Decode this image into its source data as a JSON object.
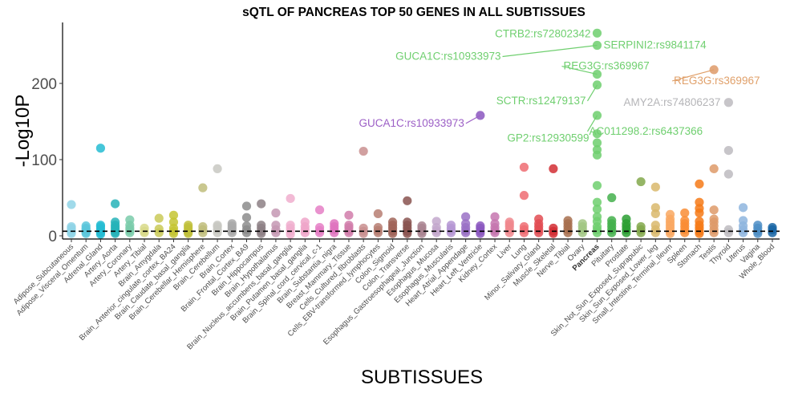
{
  "chart_data": {
    "type": "scatter",
    "title": "sQTL OF PANCREAS TOP 50 GENES IN ALL SUBTISSUES",
    "xlabel": "SUBTISSUES",
    "ylabel": "-Log10P",
    "ylim": [
      0,
      280
    ],
    "yticks": [
      0,
      100,
      200
    ],
    "grid": false,
    "threshold": 6,
    "highlight_category": "Pancreas",
    "categories": [
      {
        "name": "Adipose_Subcutaneous",
        "color": "#8FD3E6",
        "values": [
          3,
          5,
          8,
          10,
          12,
          41
        ]
      },
      {
        "name": "Adipose_Visceral_Omentum",
        "color": "#5BC6DB",
        "values": [
          3,
          5,
          8,
          10,
          13
        ]
      },
      {
        "name": "Adrenal_Gland",
        "color": "#25BCD2",
        "values": [
          2,
          4,
          6,
          9,
          12,
          14,
          115
        ]
      },
      {
        "name": "Artery_Aorta",
        "color": "#26B3B8",
        "values": [
          3,
          5,
          8,
          11,
          14,
          18,
          42
        ]
      },
      {
        "name": "Artery_Coronary",
        "color": "#7ACBAA",
        "values": [
          4,
          7,
          10,
          14,
          21
        ]
      },
      {
        "name": "Artery_Tibial",
        "color": "#D8D98A",
        "values": [
          4,
          6,
          10
        ]
      },
      {
        "name": "Brain_Amygdala",
        "color": "#CACA58",
        "values": [
          4,
          9,
          23
        ]
      },
      {
        "name": "Brain_Anterior_cingulate_cortex_BA24",
        "color": "#C4C432",
        "values": [
          3,
          6,
          10,
          18,
          27
        ]
      },
      {
        "name": "Brain_Caudate_basal_ganglia",
        "color": "#BFBF3A",
        "values": [
          3,
          5,
          8,
          11,
          14
        ]
      },
      {
        "name": "Brain_Cerebellar_Hemisphere",
        "color": "#C0BD7B",
        "values": [
          4,
          8,
          12,
          63
        ]
      },
      {
        "name": "Brain_Cerebellum",
        "color": "#C8C8C2",
        "values": [
          4,
          8,
          12,
          14,
          88
        ]
      },
      {
        "name": "Brain_Cortex",
        "color": "#A9A9A9",
        "values": [
          4,
          7,
          10,
          13,
          16
        ]
      },
      {
        "name": "Brain_Frontal_Cortex_BA9",
        "color": "#8C8C8C",
        "values": [
          4,
          8,
          13,
          24,
          39
        ]
      },
      {
        "name": "Brain_Hippocampus",
        "color": "#8D8085",
        "values": [
          3,
          6,
          10,
          14,
          42
        ]
      },
      {
        "name": "Brain_Hypothalamus",
        "color": "#C498B3",
        "values": [
          4,
          8,
          14,
          30
        ]
      },
      {
        "name": "Brain_Nucleus_accumbens_basal_ganglia",
        "color": "#F0AECE",
        "values": [
          2,
          6,
          10,
          14,
          49
        ]
      },
      {
        "name": "Brain_Putamen_basal_ganglia",
        "color": "#EFA4C9",
        "values": [
          4,
          8,
          12,
          18
        ]
      },
      {
        "name": "Brain_Spinal_cord_cervical_c-1",
        "color": "#E57FC6",
        "values": [
          4,
          7,
          11,
          34
        ]
      },
      {
        "name": "Brain_Substantia_nigra",
        "color": "#DF73BE",
        "values": [
          4,
          8,
          12,
          16
        ]
      },
      {
        "name": "Breast_Mammary_Tissue",
        "color": "#D17DAA",
        "values": [
          4,
          7,
          11,
          14,
          27
        ]
      },
      {
        "name": "Cells_Cultured_fibroblasts",
        "color": "#C98F8F",
        "values": [
          3,
          6,
          10,
          111
        ]
      },
      {
        "name": "Cells_EBV-transformed_lymphocytes",
        "color": "#B77E72",
        "values": [
          4,
          7,
          11,
          29
        ]
      },
      {
        "name": "Colon_Sigmoid",
        "color": "#A06458",
        "values": [
          3,
          6,
          10,
          14,
          18
        ]
      },
      {
        "name": "Colon_Transverse",
        "color": "#8A5450",
        "values": [
          3,
          6,
          10,
          14,
          18,
          46
        ]
      },
      {
        "name": "Esophagus_Gastroesophageal_Junction",
        "color": "#A98490",
        "values": [
          3,
          6,
          10,
          13
        ]
      },
      {
        "name": "Esophagus_Mucosa",
        "color": "#C3A8CD",
        "values": [
          4,
          7,
          11,
          19
        ]
      },
      {
        "name": "Esophagus_Muscularis",
        "color": "#B597D4",
        "values": [
          4,
          7,
          10,
          14
        ]
      },
      {
        "name": "Heart_Atrial_Appendage",
        "color": "#9A71C5",
        "values": [
          4,
          7,
          11,
          16,
          25
        ]
      },
      {
        "name": "Heart_Left_Ventricle",
        "color": "#8B57BF",
        "values": [
          3,
          6,
          10,
          13,
          158
        ]
      },
      {
        "name": "Kidney_Cortex",
        "color": "#C576AF",
        "values": [
          4,
          7,
          11,
          16,
          25
        ]
      },
      {
        "name": "Liver",
        "color": "#F0878D",
        "values": [
          4,
          8,
          12,
          15,
          18
        ]
      },
      {
        "name": "Lung",
        "color": "#EF6C72",
        "values": [
          4,
          8,
          12,
          53,
          90
        ]
      },
      {
        "name": "Minor_Salivary_Gland",
        "color": "#E24C52",
        "values": [
          4,
          8,
          12,
          16,
          22
        ]
      },
      {
        "name": "Muscle_Skeletal",
        "color": "#D22E34",
        "values": [
          3,
          6,
          10,
          88
        ]
      },
      {
        "name": "Nerve_Tibial",
        "color": "#A8704F",
        "values": [
          4,
          8,
          12,
          16,
          20
        ]
      },
      {
        "name": "Ovary",
        "color": "#A2C784",
        "values": [
          4,
          8,
          12,
          16
        ]
      },
      {
        "name": "Pancreas",
        "color": "#6FCF6F",
        "values": [
          4,
          8,
          12,
          19,
          25,
          35,
          44,
          66,
          106,
          113,
          122,
          134,
          158,
          198,
          212,
          250,
          266
        ]
      },
      {
        "name": "Pituitary",
        "color": "#44B04C",
        "values": [
          4,
          8,
          12,
          16,
          20,
          50
        ]
      },
      {
        "name": "Prostate",
        "color": "#2C9F33",
        "values": [
          4,
          8,
          12,
          16,
          22
        ]
      },
      {
        "name": "Skin_Not_Sun_Exposed_Suprapubic",
        "color": "#82A84B",
        "values": [
          4,
          8,
          12,
          71
        ]
      },
      {
        "name": "Skin_Sun_Exposed_Lower_leg",
        "color": "#D9B86C",
        "values": [
          4,
          8,
          14,
          29,
          37,
          64
        ]
      },
      {
        "name": "Small_Intestine_Terminal_Ileum",
        "color": "#F9A861",
        "values": [
          3,
          6,
          10,
          14,
          18,
          22,
          28
        ]
      },
      {
        "name": "Spleen",
        "color": "#F98D35",
        "values": [
          4,
          8,
          12,
          16,
          20,
          30
        ]
      },
      {
        "name": "Stomach",
        "color": "#F67A17",
        "values": [
          3,
          6,
          10,
          14,
          19,
          30,
          36,
          44,
          68
        ]
      },
      {
        "name": "Testis",
        "color": "#DE9A69",
        "values": [
          4,
          8,
          13,
          18,
          22,
          34,
          88,
          218
        ]
      },
      {
        "name": "Thyroid",
        "color": "#BDBBC0",
        "values": [
          4,
          8,
          81,
          112,
          175
        ]
      },
      {
        "name": "Uterus",
        "color": "#8EB5DE",
        "values": [
          4,
          8,
          13,
          20,
          37
        ]
      },
      {
        "name": "Vagina",
        "color": "#4E8EC6",
        "values": [
          3,
          6,
          10,
          14
        ]
      },
      {
        "name": "Whole_Blood",
        "color": "#1865A4",
        "values": [
          4,
          8,
          11
        ]
      }
    ],
    "annotations": [
      {
        "label": "CTRB2:rs72802342",
        "category": "Pancreas",
        "value": 266,
        "color": "#6FCF6F",
        "side": "left"
      },
      {
        "label": "SERPINI2:rs9841174",
        "category": "Pancreas",
        "value": 250,
        "color": "#6FCF6F",
        "side": "right"
      },
      {
        "label": "GUCA1C:rs10933973",
        "category": "Pancreas",
        "value": 250,
        "color": "#6FCF6F",
        "side": "left-far"
      },
      {
        "label": "REG3G:rs369967",
        "category": "Pancreas",
        "value": 212,
        "color": "#6FCF6F",
        "side": "right-up"
      },
      {
        "label": "SCTR:rs12479137",
        "category": "Pancreas",
        "value": 198,
        "color": "#6FCF6F",
        "side": "left-down"
      },
      {
        "label": "AC011298.2:rs6437366",
        "category": "Pancreas",
        "value": 158,
        "color": "#6FCF6F",
        "side": "right-down"
      },
      {
        "label": "GP2:rs12930599",
        "category": "Pancreas",
        "value": 134,
        "color": "#6FCF6F",
        "side": "left"
      },
      {
        "label": "GUCA1C:rs10933973",
        "category": "Heart_Left_Ventricle",
        "value": 158,
        "color": "#9C5FC6",
        "side": "left-down"
      },
      {
        "label": "REG3G:rs369967",
        "category": "Testis",
        "value": 218,
        "color": "#E0A06A",
        "side": "right-down"
      },
      {
        "label": "AMY2A:rs74806237",
        "category": "Thyroid",
        "value": 175,
        "color": "#B5B5B8",
        "side": "left"
      }
    ]
  }
}
